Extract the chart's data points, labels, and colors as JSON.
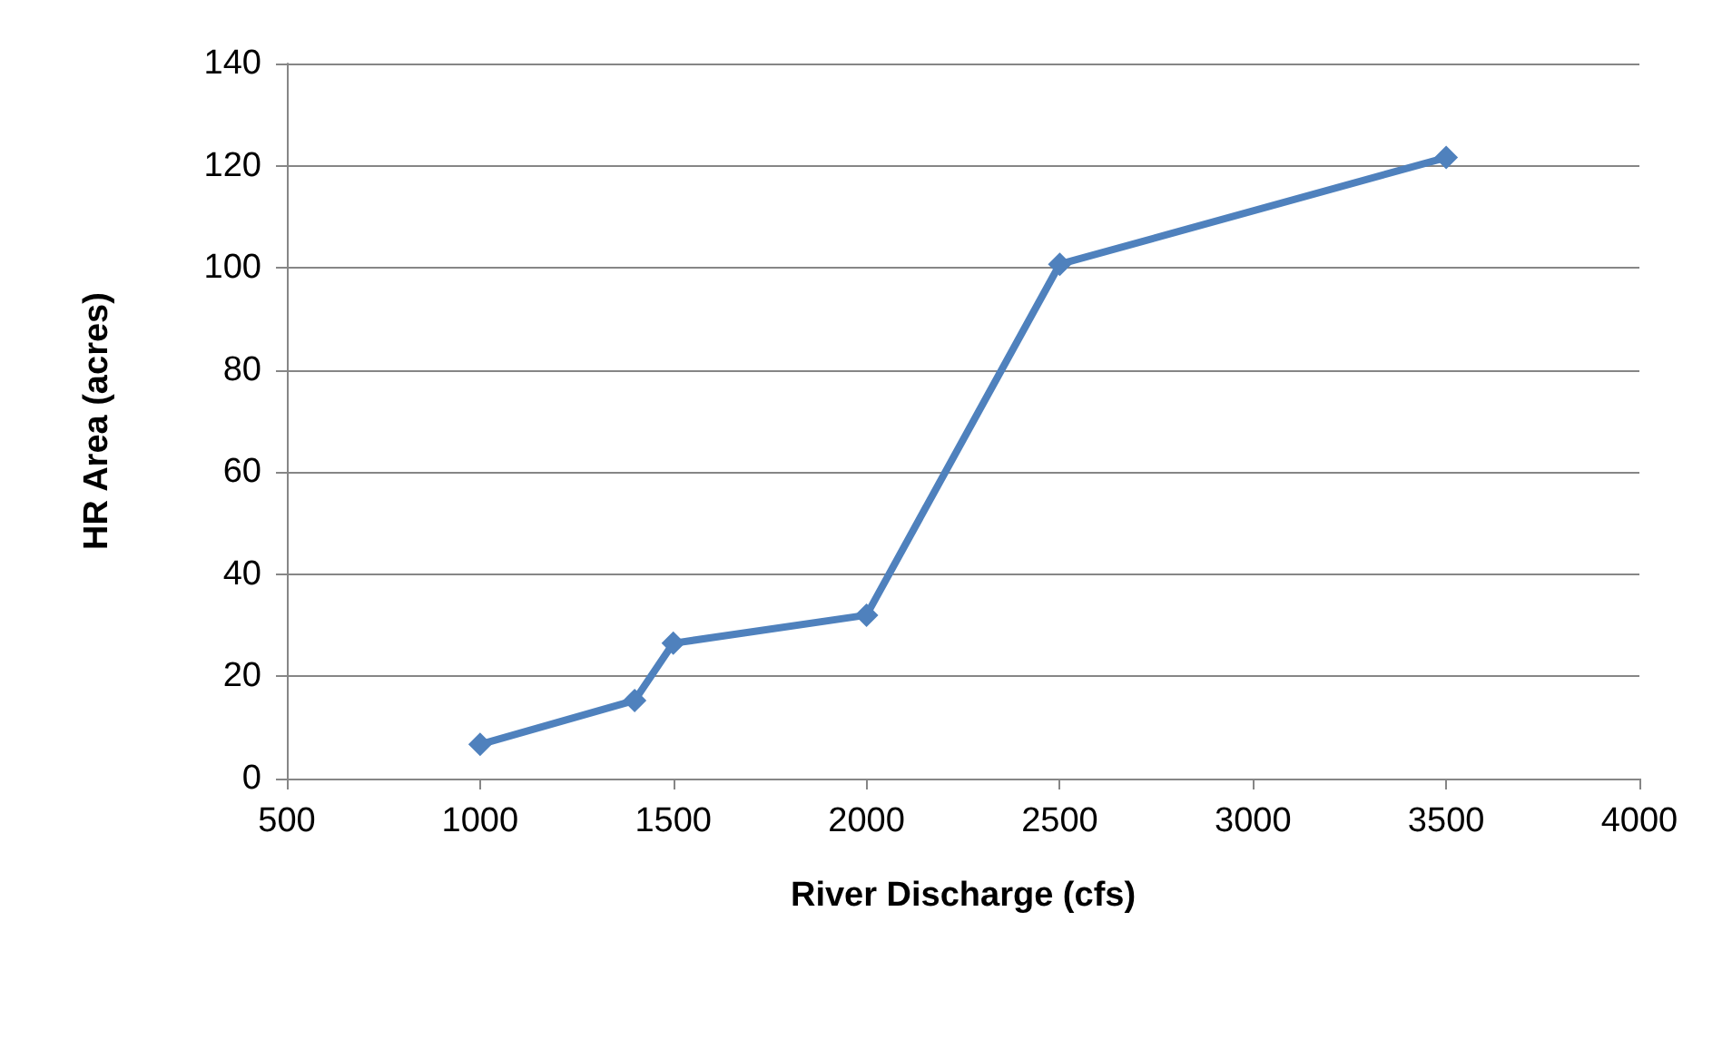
{
  "chart_data": {
    "type": "line",
    "xlabel": "River Discharge (cfs)",
    "ylabel": "HR Area (acres)",
    "x": [
      1000,
      1400,
      1500,
      2000,
      2500,
      3500
    ],
    "series": [
      {
        "color": "#4f81bd",
        "values": [
          6.7,
          15.3,
          26.5,
          32,
          100.7,
          121.6
        ]
      }
    ],
    "xlim": [
      500,
      4000
    ],
    "xticks": [
      500,
      1000,
      1500,
      2000,
      2500,
      3000,
      3500,
      4000
    ],
    "ylim": [
      0,
      140
    ],
    "yticks": [
      0,
      20,
      40,
      60,
      80,
      100,
      120,
      140
    ],
    "grid": "y",
    "marker": "diamond",
    "line_style": "solid"
  }
}
